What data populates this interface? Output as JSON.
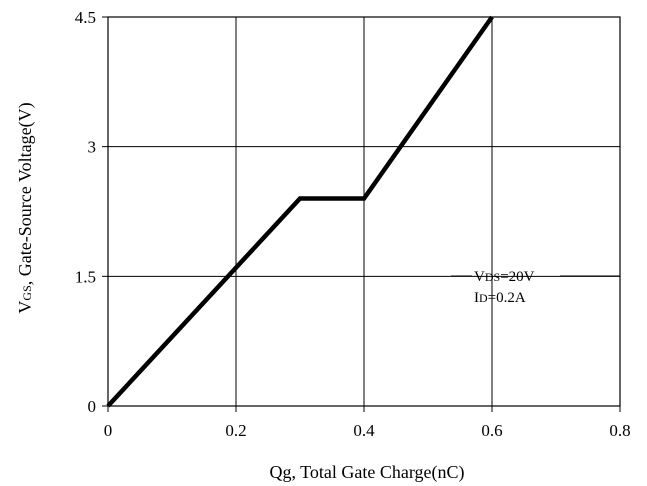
{
  "chart_data": {
    "type": "line",
    "xlabel": "Qg, Total Gate Charge(nC)",
    "ylabel": {
      "prefix": "V",
      "sub": "GS",
      "rest": ", Gate-Source Voltage(V)"
    },
    "xlim": [
      0,
      0.8
    ],
    "ylim": [
      0,
      4.5
    ],
    "x_ticks": [
      "0",
      "0.2",
      "0.4",
      "0.6",
      "0.8"
    ],
    "y_ticks": [
      "0",
      "1.5",
      "3",
      "4.5"
    ],
    "grid": true,
    "series": [
      {
        "x": [
          0,
          0.3,
          0.4,
          0.6
        ],
        "y": [
          0,
          2.4,
          2.4,
          4.5
        ]
      }
    ],
    "annotations": [
      {
        "prefix": "V",
        "sub": "DS",
        "rest": "=20V"
      },
      {
        "prefix": "I",
        "sub": "D",
        "rest": "=0.2A"
      }
    ]
  }
}
